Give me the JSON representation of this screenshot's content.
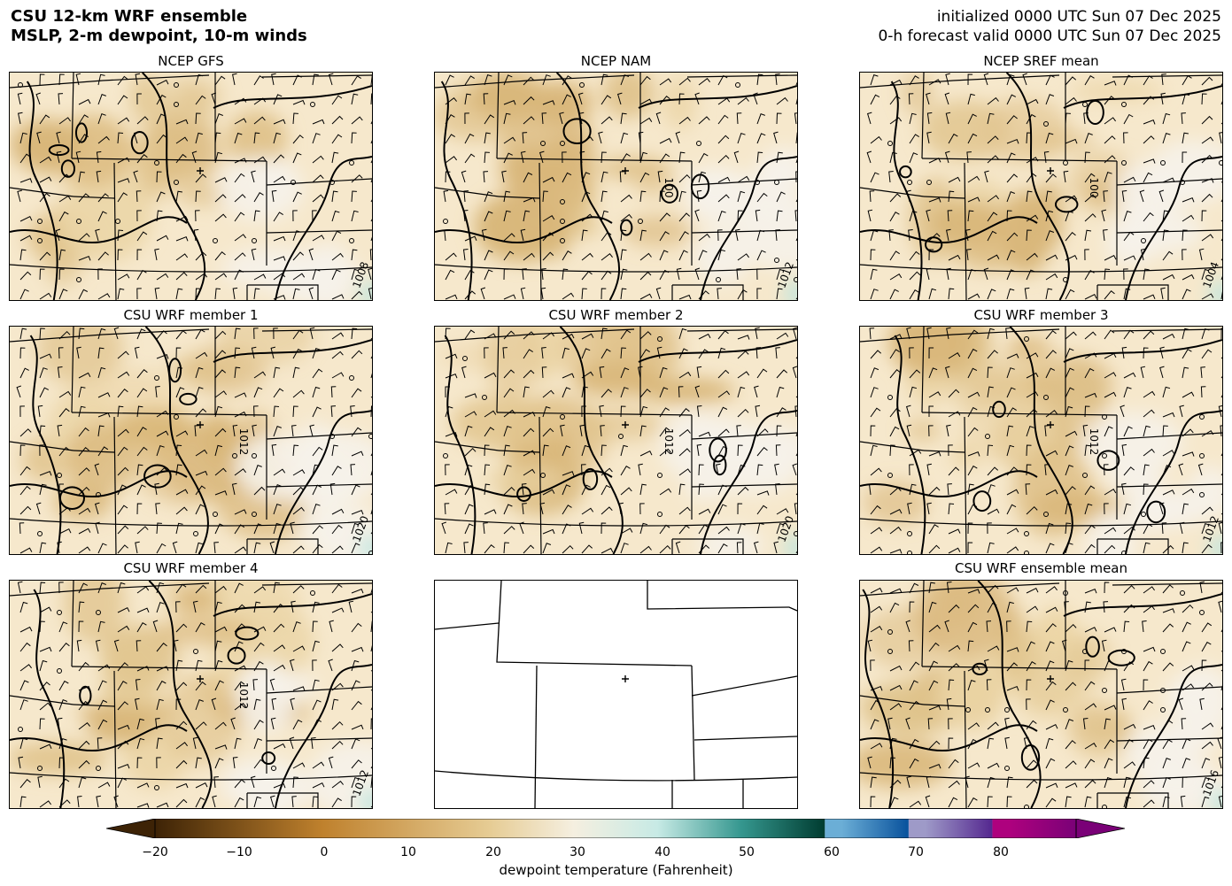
{
  "header": {
    "title_line1": "CSU 12-km WRF ensemble",
    "title_line2": "MSLP, 2-m dewpoint, 10-m winds",
    "init_line": "initialized 0000 UTC Sun 07 Dec 2025",
    "valid_line": "0-h forecast valid 0000 UTC Sun 07 Dec 2025"
  },
  "panels": [
    {
      "title": "NCEP GFS",
      "has_data": true,
      "contour_labels": [
        "1008"
      ]
    },
    {
      "title": "NCEP NAM",
      "has_data": true,
      "contour_labels": [
        "1012",
        "100"
      ]
    },
    {
      "title": "NCEP SREF mean",
      "has_data": true,
      "contour_labels": [
        "1004",
        "100"
      ]
    },
    {
      "title": "CSU WRF member 1",
      "has_data": true,
      "contour_labels": [
        "1020",
        "1012"
      ]
    },
    {
      "title": "CSU WRF member 2",
      "has_data": true,
      "contour_labels": [
        "1020",
        "1012"
      ]
    },
    {
      "title": "CSU WRF member 3",
      "has_data": true,
      "contour_labels": [
        "1012",
        "1012"
      ]
    },
    {
      "title": "CSU WRF member 4",
      "has_data": true,
      "contour_labels": [
        "1012",
        "1012"
      ]
    },
    {
      "title": "",
      "has_data": false,
      "contour_labels": []
    },
    {
      "title": "CSU WRF ensemble mean",
      "has_data": true,
      "contour_labels": [
        "1016"
      ]
    }
  ],
  "colorbar": {
    "label": "dewpoint temperature (Fahrenheit)",
    "min": -20,
    "max": 90,
    "extend": "both",
    "ticks": [
      "−20",
      "−10",
      "0",
      "10",
      "20",
      "30",
      "40",
      "50",
      "60",
      "70",
      "80"
    ],
    "tick_values": [
      -20,
      -10,
      0,
      10,
      20,
      30,
      40,
      50,
      60,
      70,
      80
    ],
    "colors": {
      "-20": "#3d2306",
      "0": "#bf812d",
      "20": "#e6cc94",
      "30": "#f5efe0",
      "40": "#c7eae5",
      "50": "#35978f",
      "60": "#003c30",
      "62": "#6baed6",
      "70": "#08519c",
      "72": "#9e9ac8",
      "80": "#54278f",
      "82": "#ae017e",
      "90": "#7a0177"
    }
  }
}
